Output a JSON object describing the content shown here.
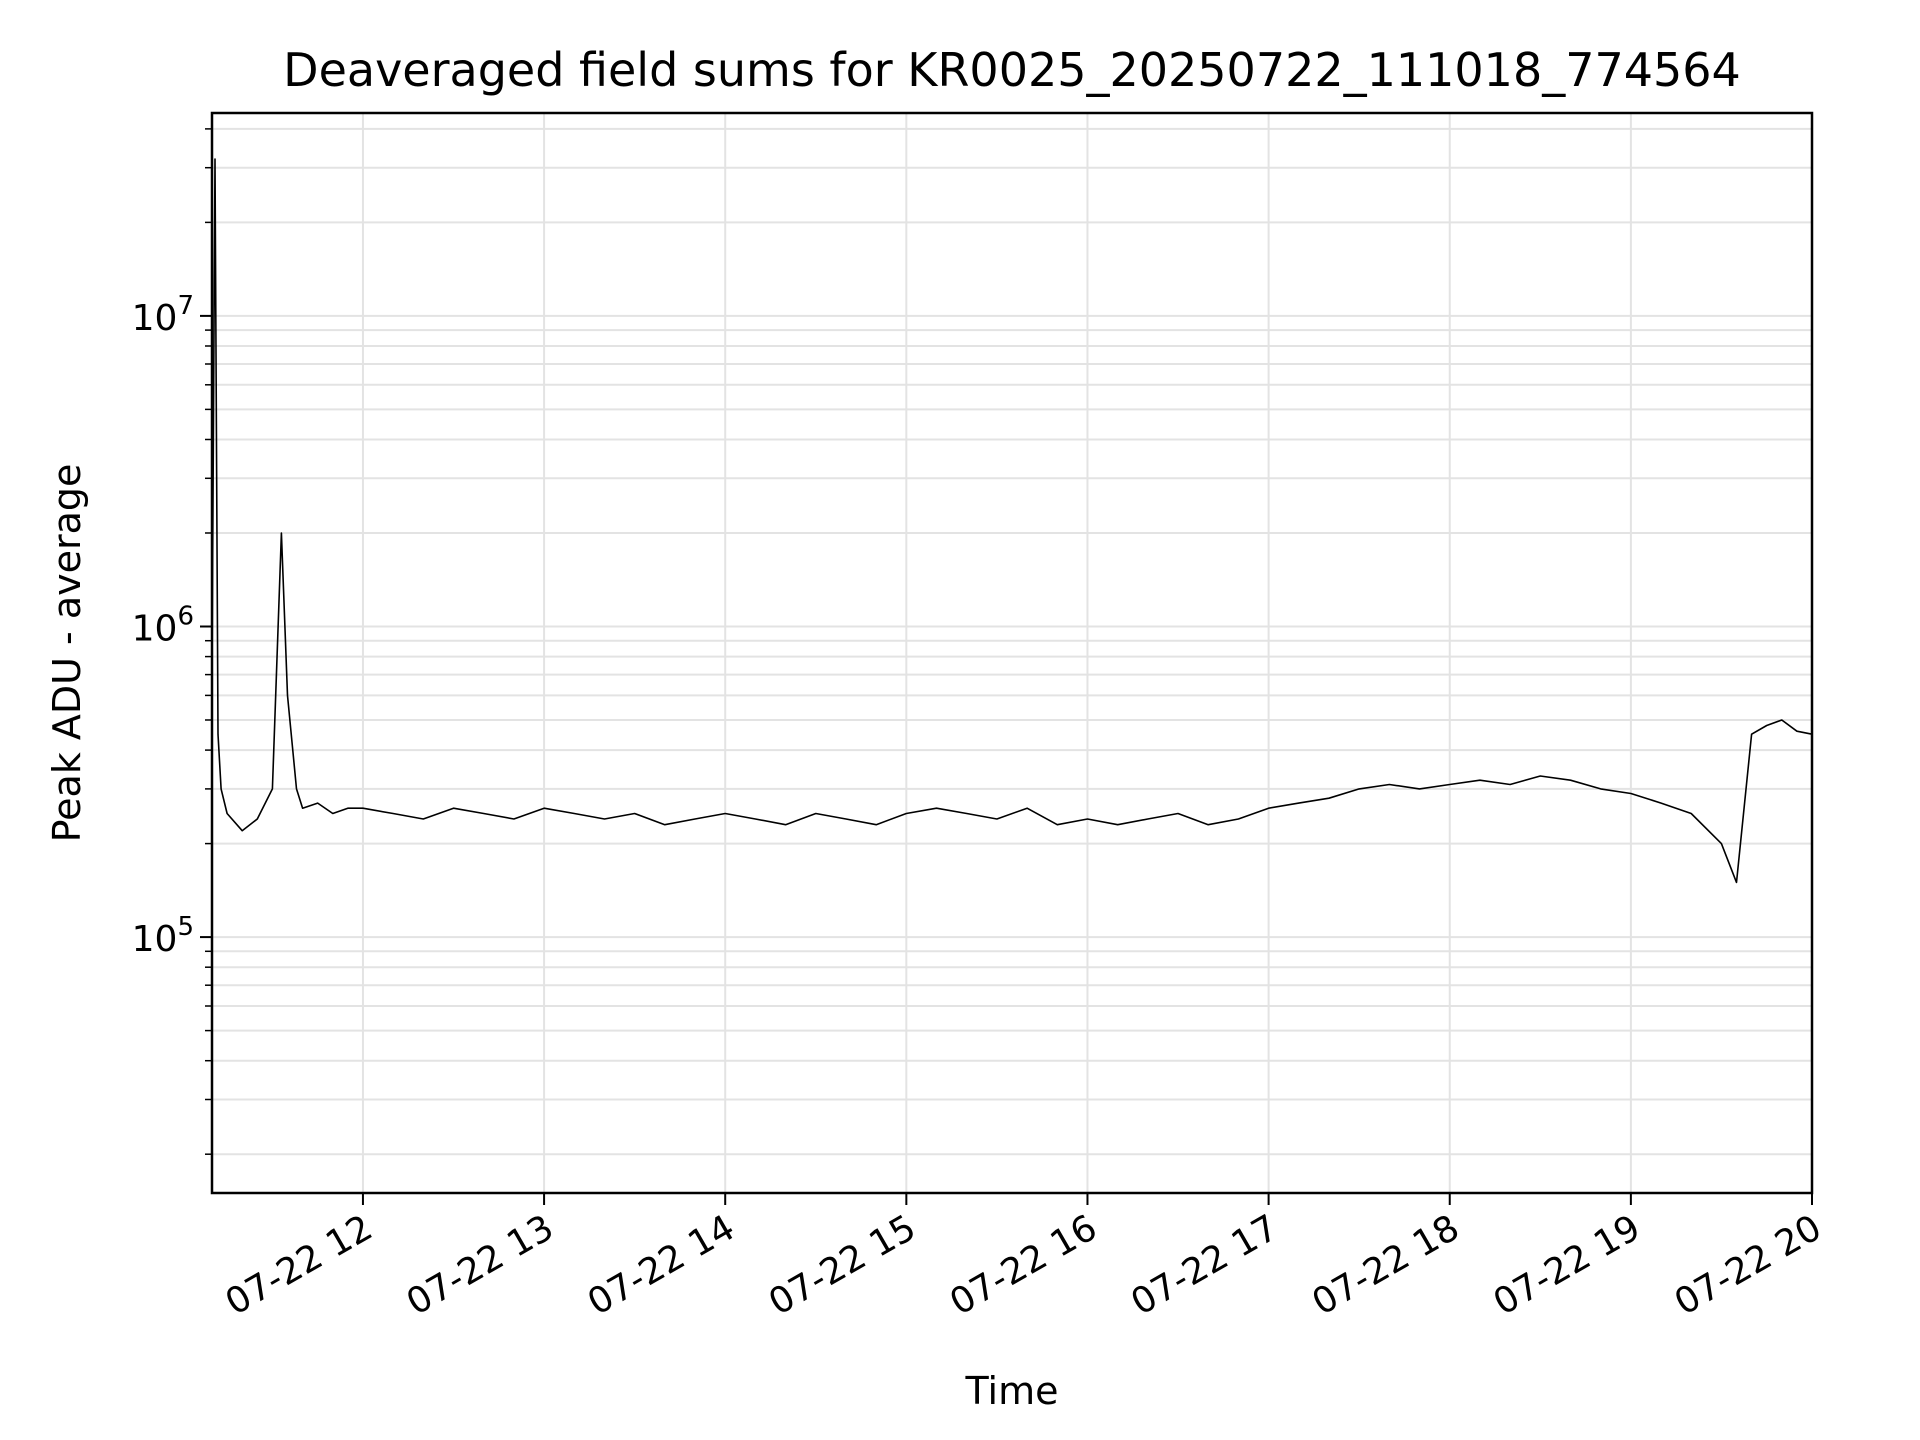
{
  "chart_data": {
    "type": "line",
    "title": "Deaveraged field sums for KR0025_20250722_111018_774564",
    "xlabel": "Time",
    "ylabel": "Peak ADU - average",
    "y_scale": "log",
    "ylim": [
      15000,
      45000000
    ],
    "xlim": [
      "07-22 11:10",
      "07-22 20:00"
    ],
    "grid": true,
    "line_color": "#000000",
    "grid_color": "#e3e3e3",
    "x_ticks": [
      {
        "value": "07-22 12:00",
        "label": "07-22 12"
      },
      {
        "value": "07-22 13:00",
        "label": "07-22 13"
      },
      {
        "value": "07-22 14:00",
        "label": "07-22 14"
      },
      {
        "value": "07-22 15:00",
        "label": "07-22 15"
      },
      {
        "value": "07-22 16:00",
        "label": "07-22 16"
      },
      {
        "value": "07-22 17:00",
        "label": "07-22 17"
      },
      {
        "value": "07-22 18:00",
        "label": "07-22 18"
      },
      {
        "value": "07-22 19:00",
        "label": "07-22 19"
      },
      {
        "value": "07-22 20:00",
        "label": "07-22 20"
      }
    ],
    "y_ticks": [
      {
        "value": 100000,
        "base": "10",
        "exp": "5"
      },
      {
        "value": 1000000,
        "base": "10",
        "exp": "6"
      },
      {
        "value": 10000000,
        "base": "10",
        "exp": "7"
      }
    ],
    "series": [
      {
        "x": [
          "07-22 11:10",
          "07-22 11:11",
          "07-22 11:12",
          "07-22 11:13",
          "07-22 11:15",
          "07-22 11:20",
          "07-22 11:25",
          "07-22 11:30",
          "07-22 11:33",
          "07-22 11:35",
          "07-22 11:38",
          "07-22 11:40",
          "07-22 11:45",
          "07-22 11:50",
          "07-22 11:55",
          "07-22 12:00",
          "07-22 12:10",
          "07-22 12:20",
          "07-22 12:30",
          "07-22 12:40",
          "07-22 12:50",
          "07-22 13:00",
          "07-22 13:10",
          "07-22 13:20",
          "07-22 13:30",
          "07-22 13:40",
          "07-22 13:50",
          "07-22 14:00",
          "07-22 14:10",
          "07-22 14:20",
          "07-22 14:30",
          "07-22 14:40",
          "07-22 14:50",
          "07-22 15:00",
          "07-22 15:10",
          "07-22 15:20",
          "07-22 15:30",
          "07-22 15:40",
          "07-22 15:50",
          "07-22 16:00",
          "07-22 16:10",
          "07-22 16:20",
          "07-22 16:30",
          "07-22 16:40",
          "07-22 16:50",
          "07-22 17:00",
          "07-22 17:10",
          "07-22 17:20",
          "07-22 17:30",
          "07-22 17:40",
          "07-22 17:50",
          "07-22 18:00",
          "07-22 18:10",
          "07-22 18:20",
          "07-22 18:30",
          "07-22 18:40",
          "07-22 18:50",
          "07-22 19:00",
          "07-22 19:10",
          "07-22 19:20",
          "07-22 19:30",
          "07-22 19:35",
          "07-22 19:40",
          "07-22 19:45",
          "07-22 19:50",
          "07-22 19:55",
          "07-22 20:00"
        ],
        "y": [
          700000,
          32000000,
          450000,
          300000,
          250000,
          220000,
          240000,
          300000,
          2000000,
          600000,
          300000,
          260000,
          270000,
          250000,
          260000,
          260000,
          250000,
          240000,
          260000,
          250000,
          240000,
          260000,
          250000,
          240000,
          250000,
          230000,
          240000,
          250000,
          240000,
          230000,
          250000,
          240000,
          230000,
          250000,
          260000,
          250000,
          240000,
          260000,
          230000,
          240000,
          230000,
          240000,
          250000,
          230000,
          240000,
          260000,
          270000,
          280000,
          300000,
          310000,
          300000,
          310000,
          320000,
          310000,
          330000,
          320000,
          300000,
          290000,
          270000,
          250000,
          200000,
          150000,
          450000,
          480000,
          500000,
          460000,
          450000
        ]
      }
    ]
  }
}
